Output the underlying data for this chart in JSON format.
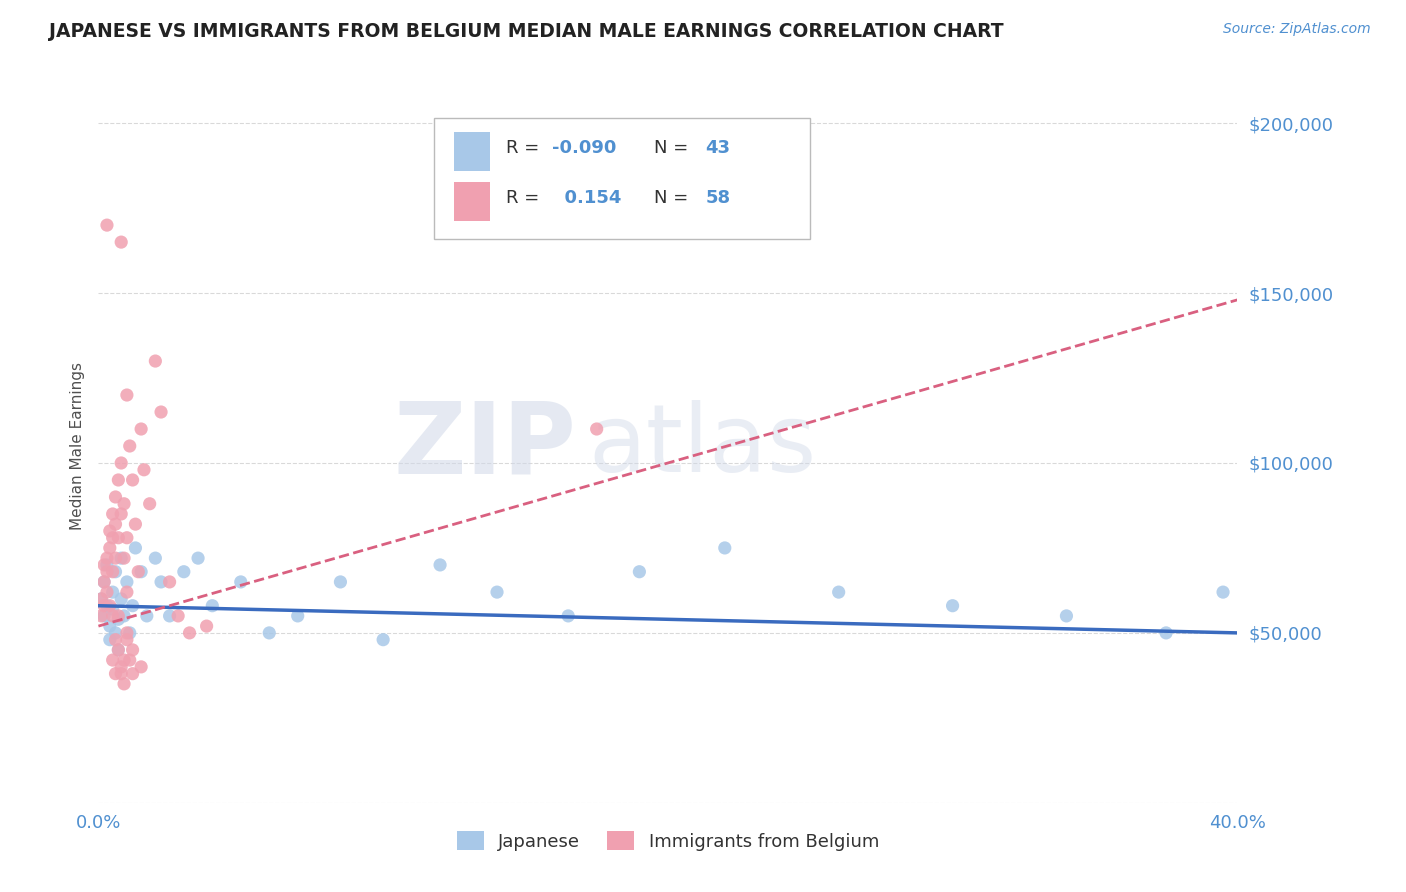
{
  "title": "JAPANESE VS IMMIGRANTS FROM BELGIUM MEDIAN MALE EARNINGS CORRELATION CHART",
  "source_text": "Source: ZipAtlas.com",
  "ylabel": "Median Male Earnings",
  "watermark_zip": "ZIP",
  "watermark_atlas": "atlas",
  "xlim": [
    0.0,
    0.4
  ],
  "ylim": [
    0,
    210000
  ],
  "ytick_values": [
    0,
    50000,
    100000,
    150000,
    200000
  ],
  "ytick_labels": [
    "",
    "$50,000",
    "$100,000",
    "$150,000",
    "$200,000"
  ],
  "R_japanese": -0.09,
  "N_japanese": 43,
  "R_belgium": 0.154,
  "N_belgium": 58,
  "color_japanese": "#a8c8e8",
  "color_belgium": "#f0a0b0",
  "color_line_japanese": "#3a6bbf",
  "color_line_belgium": "#d96080",
  "color_axis": "#5090d0",
  "color_title": "#222222",
  "background_color": "#ffffff",
  "japanese_x": [
    0.001,
    0.002,
    0.002,
    0.003,
    0.003,
    0.004,
    0.004,
    0.005,
    0.005,
    0.006,
    0.006,
    0.007,
    0.007,
    0.008,
    0.008,
    0.009,
    0.01,
    0.011,
    0.012,
    0.013,
    0.015,
    0.017,
    0.02,
    0.022,
    0.025,
    0.03,
    0.035,
    0.04,
    0.05,
    0.06,
    0.07,
    0.085,
    0.1,
    0.12,
    0.14,
    0.165,
    0.19,
    0.22,
    0.26,
    0.3,
    0.34,
    0.375,
    0.395
  ],
  "japanese_y": [
    60000,
    55000,
    65000,
    58000,
    70000,
    52000,
    48000,
    62000,
    57000,
    50000,
    68000,
    54000,
    45000,
    72000,
    60000,
    55000,
    65000,
    50000,
    58000,
    75000,
    68000,
    55000,
    72000,
    65000,
    55000,
    68000,
    72000,
    58000,
    65000,
    50000,
    55000,
    65000,
    48000,
    70000,
    62000,
    55000,
    68000,
    75000,
    62000,
    58000,
    55000,
    50000,
    62000
  ],
  "belgium_x": [
    0.001,
    0.001,
    0.002,
    0.002,
    0.002,
    0.003,
    0.003,
    0.003,
    0.004,
    0.004,
    0.004,
    0.005,
    0.005,
    0.005,
    0.005,
    0.006,
    0.006,
    0.006,
    0.007,
    0.007,
    0.008,
    0.008,
    0.009,
    0.009,
    0.01,
    0.01,
    0.011,
    0.012,
    0.013,
    0.014,
    0.015,
    0.016,
    0.018,
    0.02,
    0.022,
    0.025,
    0.028,
    0.032,
    0.038,
    0.005,
    0.006,
    0.007,
    0.008,
    0.009,
    0.01,
    0.011,
    0.012,
    0.008,
    0.01,
    0.175,
    0.006,
    0.007,
    0.008,
    0.009,
    0.01,
    0.012,
    0.015,
    0.003
  ],
  "belgium_y": [
    60000,
    55000,
    65000,
    70000,
    58000,
    72000,
    68000,
    62000,
    75000,
    80000,
    58000,
    85000,
    78000,
    68000,
    55000,
    90000,
    82000,
    72000,
    95000,
    78000,
    100000,
    85000,
    88000,
    72000,
    78000,
    62000,
    105000,
    95000,
    82000,
    68000,
    110000,
    98000,
    88000,
    130000,
    115000,
    65000,
    55000,
    50000,
    52000,
    42000,
    38000,
    45000,
    40000,
    35000,
    48000,
    42000,
    38000,
    165000,
    120000,
    110000,
    48000,
    55000,
    38000,
    42000,
    50000,
    45000,
    40000,
    170000
  ],
  "jap_line_x0": 0.0,
  "jap_line_y0": 58000,
  "jap_line_x1": 0.4,
  "jap_line_y1": 50000,
  "bel_line_x0": 0.0,
  "bel_line_y0": 52000,
  "bel_line_x1": 0.4,
  "bel_line_y1": 148000
}
